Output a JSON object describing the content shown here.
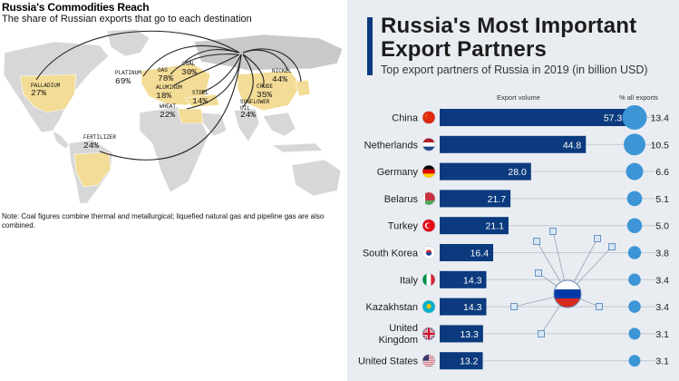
{
  "left_panel": {
    "title": "Russia's Commodities Reach",
    "subtitle": "The share of Russian exports that go to each destination",
    "note": "Note: Coal figures combine thermal and metallurgical; liquefied natural gas and pipeline gas are also combined.",
    "commodities": [
      {
        "name": "PALLADIUM",
        "share": "27%"
      },
      {
        "name": "PLATINUM",
        "share": "69%"
      },
      {
        "name": "GAS",
        "share": "78%"
      },
      {
        "name": "COAL",
        "share": "30%"
      },
      {
        "name": "ALUMINUM",
        "share": "18%"
      },
      {
        "name": "STEEL",
        "share": "14%"
      },
      {
        "name": "WHEAT",
        "share": "22%"
      },
      {
        "name": "NICKEL",
        "share": "44%"
      },
      {
        "name": "CRUDE",
        "share": "35%"
      },
      {
        "name": "SUNFLOWER OIL",
        "share": "24%"
      },
      {
        "name": "FERTILIZER",
        "share": "24%"
      }
    ],
    "colors": {
      "land": "#d7d7d7",
      "highlight": "#f3dc96",
      "arc": "#222222"
    }
  },
  "chart_data": {
    "type": "bar",
    "title": "Russia's Most Important Export Partners",
    "subtitle": "Top export partners of Russia in 2019 (in billion USD)",
    "column_headers": {
      "volume": "Export volume",
      "share": "% all exports"
    },
    "categories": [
      "China",
      "Netherlands",
      "Germany",
      "Belarus",
      "Turkey",
      "South Korea",
      "Italy",
      "Kazakhstan",
      "United Kingdom",
      "United States"
    ],
    "series": [
      {
        "values": [
          57.3,
          44.8,
          28.0,
          21.7,
          21.1,
          16.4,
          14.3,
          14.3,
          13.3,
          13.2
        ]
      },
      {
        "values": [
          13.4,
          10.5,
          6.6,
          5.1,
          5.0,
          3.8,
          3.4,
          3.4,
          3.1,
          3.1
        ]
      }
    ],
    "value_labels": [
      "57.3",
      "44.8",
      "28.0",
      "21.7",
      "21.1",
      "16.4",
      "14.3",
      "14.3",
      "13.3",
      "13.2"
    ],
    "share_labels": [
      "13.4",
      "10.5",
      "6.6",
      "5.1",
      "5.0",
      "3.8",
      "3.4",
      "3.4",
      "3.1",
      "3.1"
    ],
    "xlim": [
      0,
      60
    ],
    "flag_icons": [
      "china-flag-icon",
      "netherlands-flag-icon",
      "germany-flag-icon",
      "belarus-flag-icon",
      "turkey-flag-icon",
      "south-korea-flag-icon",
      "italy-flag-icon",
      "kazakhstan-flag-icon",
      "uk-flag-icon",
      "us-flag-icon"
    ],
    "colors": {
      "bar": "#0b3a7e",
      "bubble": "#3d95d6",
      "background": "#e9edf2",
      "accent": "#0b3a7e"
    }
  }
}
